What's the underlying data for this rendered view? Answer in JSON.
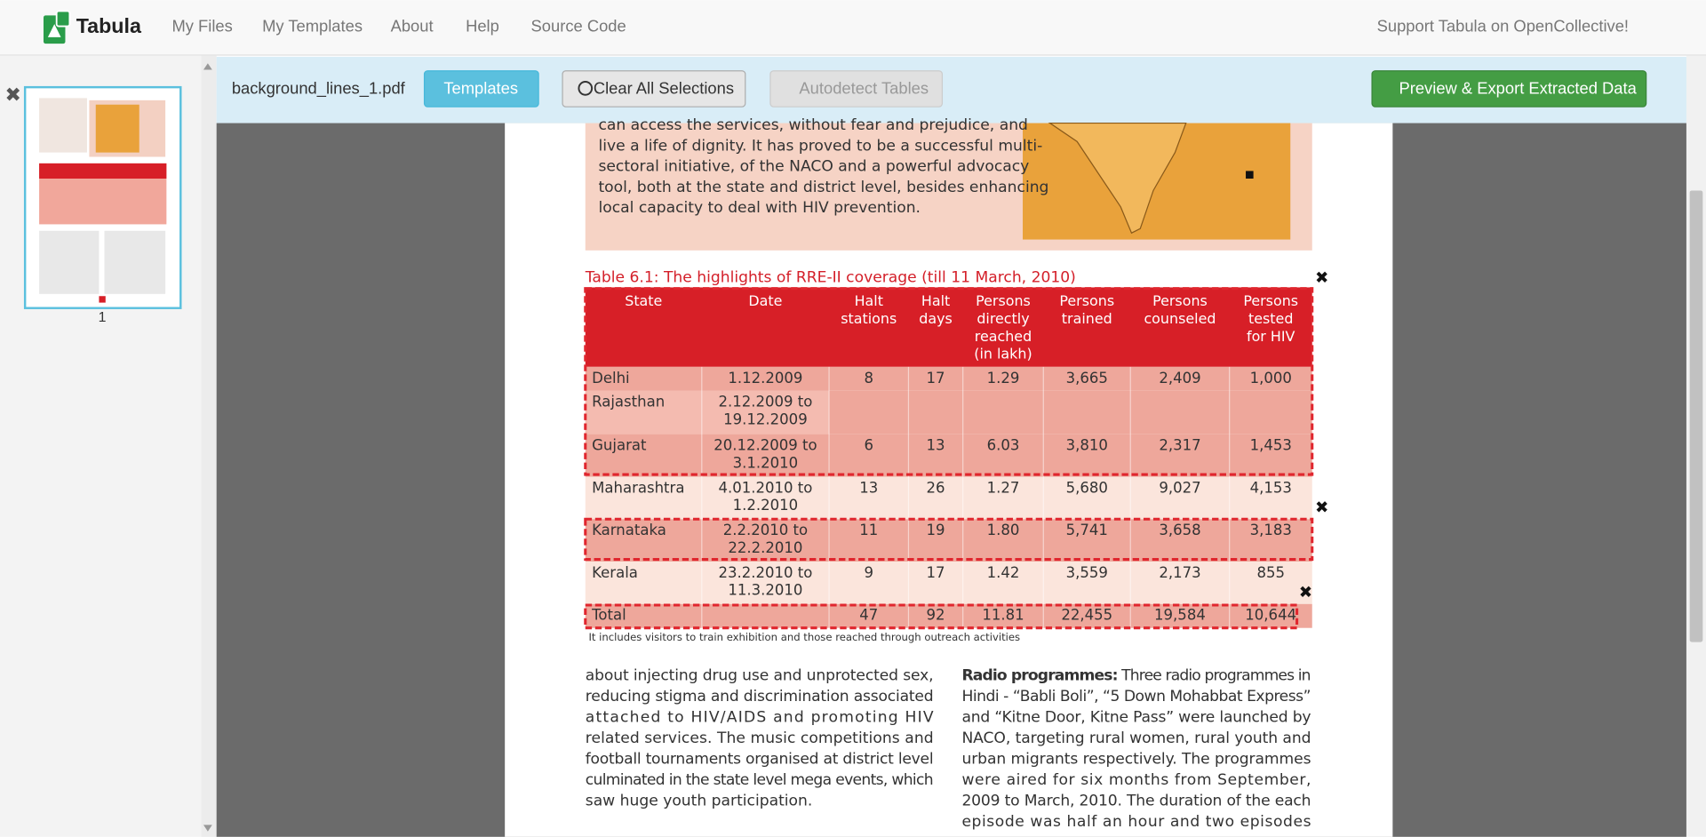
{
  "navbar": {
    "brand": "Tabula",
    "links": [
      "My Files",
      "My Templates",
      "About",
      "Help",
      "Source Code"
    ],
    "support": "Support Tabula on OpenCollective!"
  },
  "toolbar": {
    "filename": "background_lines_1.pdf",
    "templates": "Templates",
    "clear": "Clear All Selections",
    "autodetect": "Autodetect Tables",
    "export": "Preview & Export Extracted Data"
  },
  "sidebar": {
    "page_number": "1"
  },
  "document": {
    "intro_lines": [
      "can access the services, without fear and prejudice, and",
      "live a life of dignity. It has proved to be a successful multi-",
      "sectoral initiative, of the NACO and a powerful advocacy",
      "tool, both at the state and district level, besides enhancing",
      "local capacity to deal with HIV prevention."
    ],
    "table": {
      "caption": "Table 6.1: The highlights of RRE-II coverage (till 11 March, 2010)",
      "header": [
        [
          "State"
        ],
        [
          "Date"
        ],
        [
          "Halt",
          "stations"
        ],
        [
          "Halt",
          "days"
        ],
        [
          "Persons",
          "directly",
          "reached",
          "(in lakh)"
        ],
        [
          "Persons",
          "trained"
        ],
        [
          "Persons",
          "counseled"
        ],
        [
          "Persons",
          "tested",
          "for HIV"
        ]
      ],
      "rows": [
        [
          [
            "Delhi"
          ],
          [
            "1.12.2009"
          ],
          [
            "8"
          ],
          [
            "17"
          ],
          [
            "1.29"
          ],
          [
            "3,665"
          ],
          [
            "2,409"
          ],
          [
            "1,000"
          ]
        ],
        [
          [
            "Rajasthan"
          ],
          [
            "2.12.2009 to",
            "19.12.2009"
          ],
          [],
          [],
          [],
          [],
          [],
          []
        ],
        [
          [
            "Gujarat"
          ],
          [
            "20.12.2009 to",
            "3.1.2010"
          ],
          [
            "6"
          ],
          [
            "13"
          ],
          [
            "6.03"
          ],
          [
            "3,810"
          ],
          [
            "2,317"
          ],
          [
            "1,453"
          ]
        ],
        [
          [
            "Maharashtra"
          ],
          [
            "4.01.2010 to",
            "1.2.2010"
          ],
          [
            "13"
          ],
          [
            "26"
          ],
          [
            "1.27"
          ],
          [
            "5,680"
          ],
          [
            "9,027"
          ],
          [
            "4,153"
          ]
        ],
        [
          [
            "Karnataka"
          ],
          [
            "2.2.2010 to",
            "22.2.2010"
          ],
          [
            "11"
          ],
          [
            "19"
          ],
          [
            "1.80"
          ],
          [
            "5,741"
          ],
          [
            "3,658"
          ],
          [
            "3,183"
          ]
        ],
        [
          [
            "Kerala"
          ],
          [
            "23.2.2010 to",
            "11.3.2010"
          ],
          [
            "9"
          ],
          [
            "17"
          ],
          [
            "1.42"
          ],
          [
            "3,559"
          ],
          [
            "2,173"
          ],
          [
            "855"
          ]
        ],
        [
          [
            "Total"
          ],
          [],
          [
            "47"
          ],
          [
            "92"
          ],
          [
            "11.81"
          ],
          [
            "22,455"
          ],
          [
            "19,584"
          ],
          [
            "10,644"
          ]
        ]
      ],
      "footnote": "It includes visitors to train exhibition and those reached through outreach activities"
    },
    "left_column": [
      "about injecting drug use and unprotected sex,",
      "reducing stigma and discrimination associated",
      "attached to HIV/AIDS and promoting HIV",
      "related services. The music competitions and",
      "football tournaments organised at district level",
      "culminated in the state level mega events, which",
      "saw huge youth participation."
    ],
    "right_heading": "Radio programmes:",
    "right_column": [
      " Three radio programmes in",
      "Hindi - “Babli Boli”, “5 Down Mohabbat Express”",
      "and “Kitne Door, Kitne Pass” were launched by",
      "NACO, targeting rural women, rural youth and",
      "urban migrants respectively. The programmes",
      "were aired for six months from September,",
      "2009 to March, 2010. The duration of the each",
      "episode was half an hour and two episodes"
    ]
  }
}
